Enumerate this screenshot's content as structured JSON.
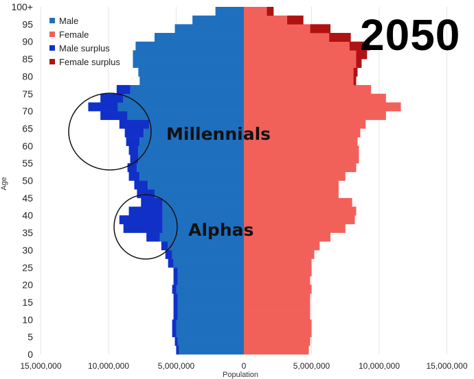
{
  "chart_data": {
    "type": "bar",
    "orientation": "horizontal-population-pyramid",
    "title": "2050",
    "xlabel": "Population",
    "ylabel": "Age",
    "xlim": [
      -15000000,
      15000000
    ],
    "ylim": [
      0,
      100
    ],
    "x_ticks": [
      {
        "value": -15000000,
        "label": "15,000,000"
      },
      {
        "value": -10000000,
        "label": "10,000,000"
      },
      {
        "value": -5000000,
        "label": "5,000,000"
      },
      {
        "value": 0,
        "label": "0"
      },
      {
        "value": 5000000,
        "label": "5,000,000"
      },
      {
        "value": 10000000,
        "label": "10,000,000"
      },
      {
        "value": 15000000,
        "label": "15,000,000"
      }
    ],
    "y_ticks": [
      "0",
      "5",
      "10",
      "15",
      "20",
      "25",
      "30",
      "35",
      "40",
      "45",
      "50",
      "55",
      "60",
      "65",
      "70",
      "75",
      "80",
      "85",
      "90",
      "95",
      "100+"
    ],
    "legend_position": "top-left",
    "series": [
      {
        "name": "Male",
        "color": "#1f6fbf",
        "values": [
          4.8,
          4.9,
          5.0,
          5.0,
          4.9,
          4.9,
          4.9,
          5.0,
          4.9,
          4.9,
          5.2,
          5.3,
          5.6,
          6.2,
          6.0,
          6.0,
          6.0,
          6.0,
          6.6,
          7.1,
          7.7,
          7.9,
          7.8,
          7.8,
          7.7,
          7.4,
          7.0,
          8.6,
          9.3,
          8.9,
          8.4,
          7.7,
          7.8,
          8.2,
          8.2,
          8.0,
          6.6,
          5.1,
          3.8,
          2.1
        ]
      },
      {
        "name": "Female",
        "color": "#f2605a",
        "values": [
          4.8,
          4.9,
          5.0,
          5.0,
          4.9,
          4.9,
          4.9,
          5.0,
          4.9,
          5.0,
          5.0,
          5.2,
          5.6,
          6.4,
          7.5,
          8.2,
          8.3,
          8.0,
          7.0,
          7.0,
          7.5,
          8.3,
          8.5,
          8.5,
          8.4,
          8.6,
          9.0,
          10.5,
          11.6,
          10.5,
          9.4,
          8.1,
          8.1,
          8.3,
          8.3,
          7.8,
          6.3,
          4.9,
          3.2,
          1.7
        ]
      },
      {
        "name": "Male surplus",
        "color": "#1030c8",
        "values": [
          0.2,
          0.2,
          0.3,
          0.3,
          0.3,
          0.3,
          0.3,
          0.3,
          0.3,
          0.3,
          0.4,
          0.5,
          0.5,
          1.0,
          2.9,
          3.2,
          2.5,
          1.6,
          1.3,
          1.0,
          0.8,
          0.7,
          0.6,
          0.7,
          1.0,
          1.4,
          2.2,
          2.0,
          2.2,
          1.7,
          1.0,
          0,
          0,
          0,
          0,
          0,
          0,
          0,
          0,
          0
        ]
      },
      {
        "name": "Female surplus",
        "color": "#b01212",
        "values": [
          0,
          0,
          0,
          0,
          0,
          0,
          0,
          0,
          0,
          0,
          0,
          0,
          0,
          0,
          0,
          0,
          0,
          0,
          0,
          0,
          0,
          0,
          0,
          0,
          0,
          0,
          0,
          0,
          0,
          0,
          0,
          0.2,
          0.3,
          0.4,
          0.8,
          1.5,
          1.6,
          1.5,
          1.2,
          0.5
        ]
      }
    ],
    "annotations": [
      {
        "text": "Millennials",
        "age": 64
      },
      {
        "text": "Alphas",
        "age": 36
      }
    ]
  },
  "legend": [
    {
      "label": "Male",
      "color": "#1f6fbf"
    },
    {
      "label": "Female",
      "color": "#f2605a"
    },
    {
      "label": "Male surplus",
      "color": "#1030c8"
    },
    {
      "label": "Female surplus",
      "color": "#b01212"
    }
  ]
}
